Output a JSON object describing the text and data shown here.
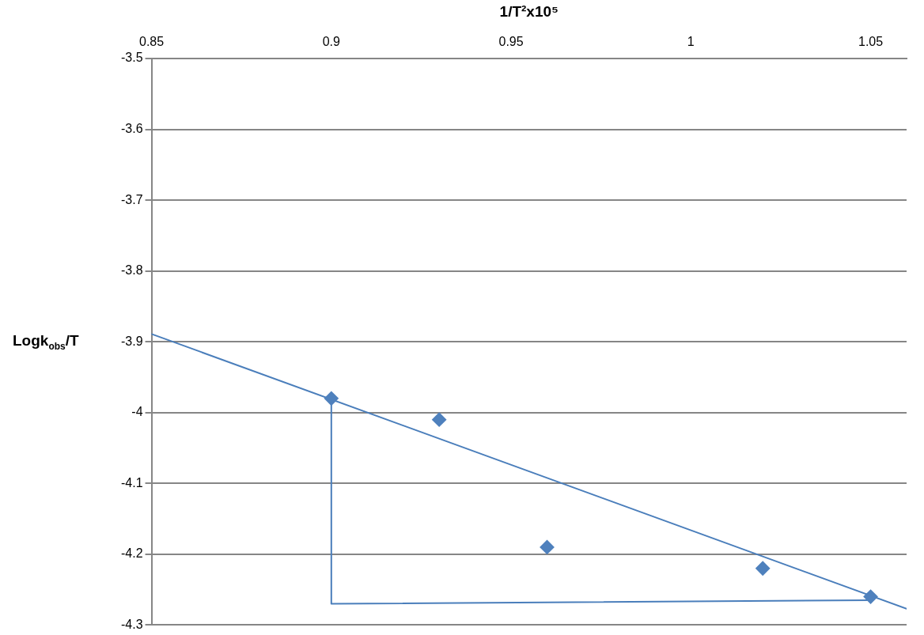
{
  "chart_data": {
    "type": "scatter",
    "xlabel": "1/T²x10⁵",
    "ylabel": "Logk$_{obs}$/T",
    "xlim": [
      0.85,
      1.06
    ],
    "xticks": [
      0.85,
      0.9,
      0.95,
      1,
      1.05
    ],
    "ylim": [
      -4.3,
      -3.5
    ],
    "yticks": [
      -4.3,
      -4.2,
      -4.1,
      -4,
      -3.9,
      -3.8,
      -3.7,
      -3.6,
      -3.5
    ],
    "grid": "y",
    "marker": "diamond",
    "series": [
      {
        "color": "#4f81bd",
        "x": [
          0.9,
          0.93,
          0.96,
          1.02,
          1.05
        ],
        "values": [
          -3.98,
          -4.01,
          -4.19,
          -4.22,
          -4.26
        ]
      },
      {
        "type": "line",
        "color": "#4a7ebb",
        "marker": "none",
        "x": [
          0.85,
          1.06
        ],
        "values": [
          -3.889,
          -4.277
        ]
      },
      {
        "type": "line",
        "color": "#4a7ebb",
        "marker": "none",
        "x": [
          0.9,
          0.9,
          1.05
        ],
        "values": [
          -3.98,
          -4.27,
          -4.265
        ]
      }
    ]
  }
}
